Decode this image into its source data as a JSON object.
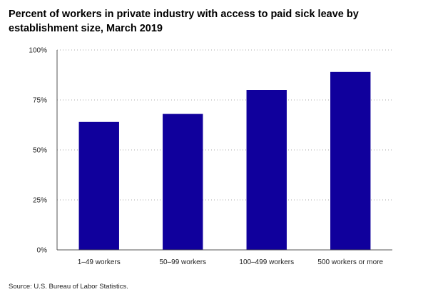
{
  "title": "Percent of workers in private industry with access to paid sick leave by establishment size, March 2019",
  "source": "Source: U.S. Bureau of Labor Statistics.",
  "colors": {
    "bar": "#10009c",
    "axis": "#555555",
    "grid": "#aaaaaa"
  },
  "chart_data": {
    "type": "bar",
    "title": "Percent of workers in private industry with access to paid sick leave by establishment size, March 2019",
    "categories": [
      "1–49 workers",
      "50–99 workers",
      "100–499 workers",
      "500 workers or more"
    ],
    "values": [
      64,
      68,
      80,
      89
    ],
    "ylim": [
      0,
      100
    ],
    "yticks": [
      0,
      25,
      50,
      75,
      100
    ],
    "ytick_labels": [
      "0%",
      "25%",
      "50%",
      "75%",
      "100%"
    ],
    "grid": true,
    "legend": "none"
  }
}
